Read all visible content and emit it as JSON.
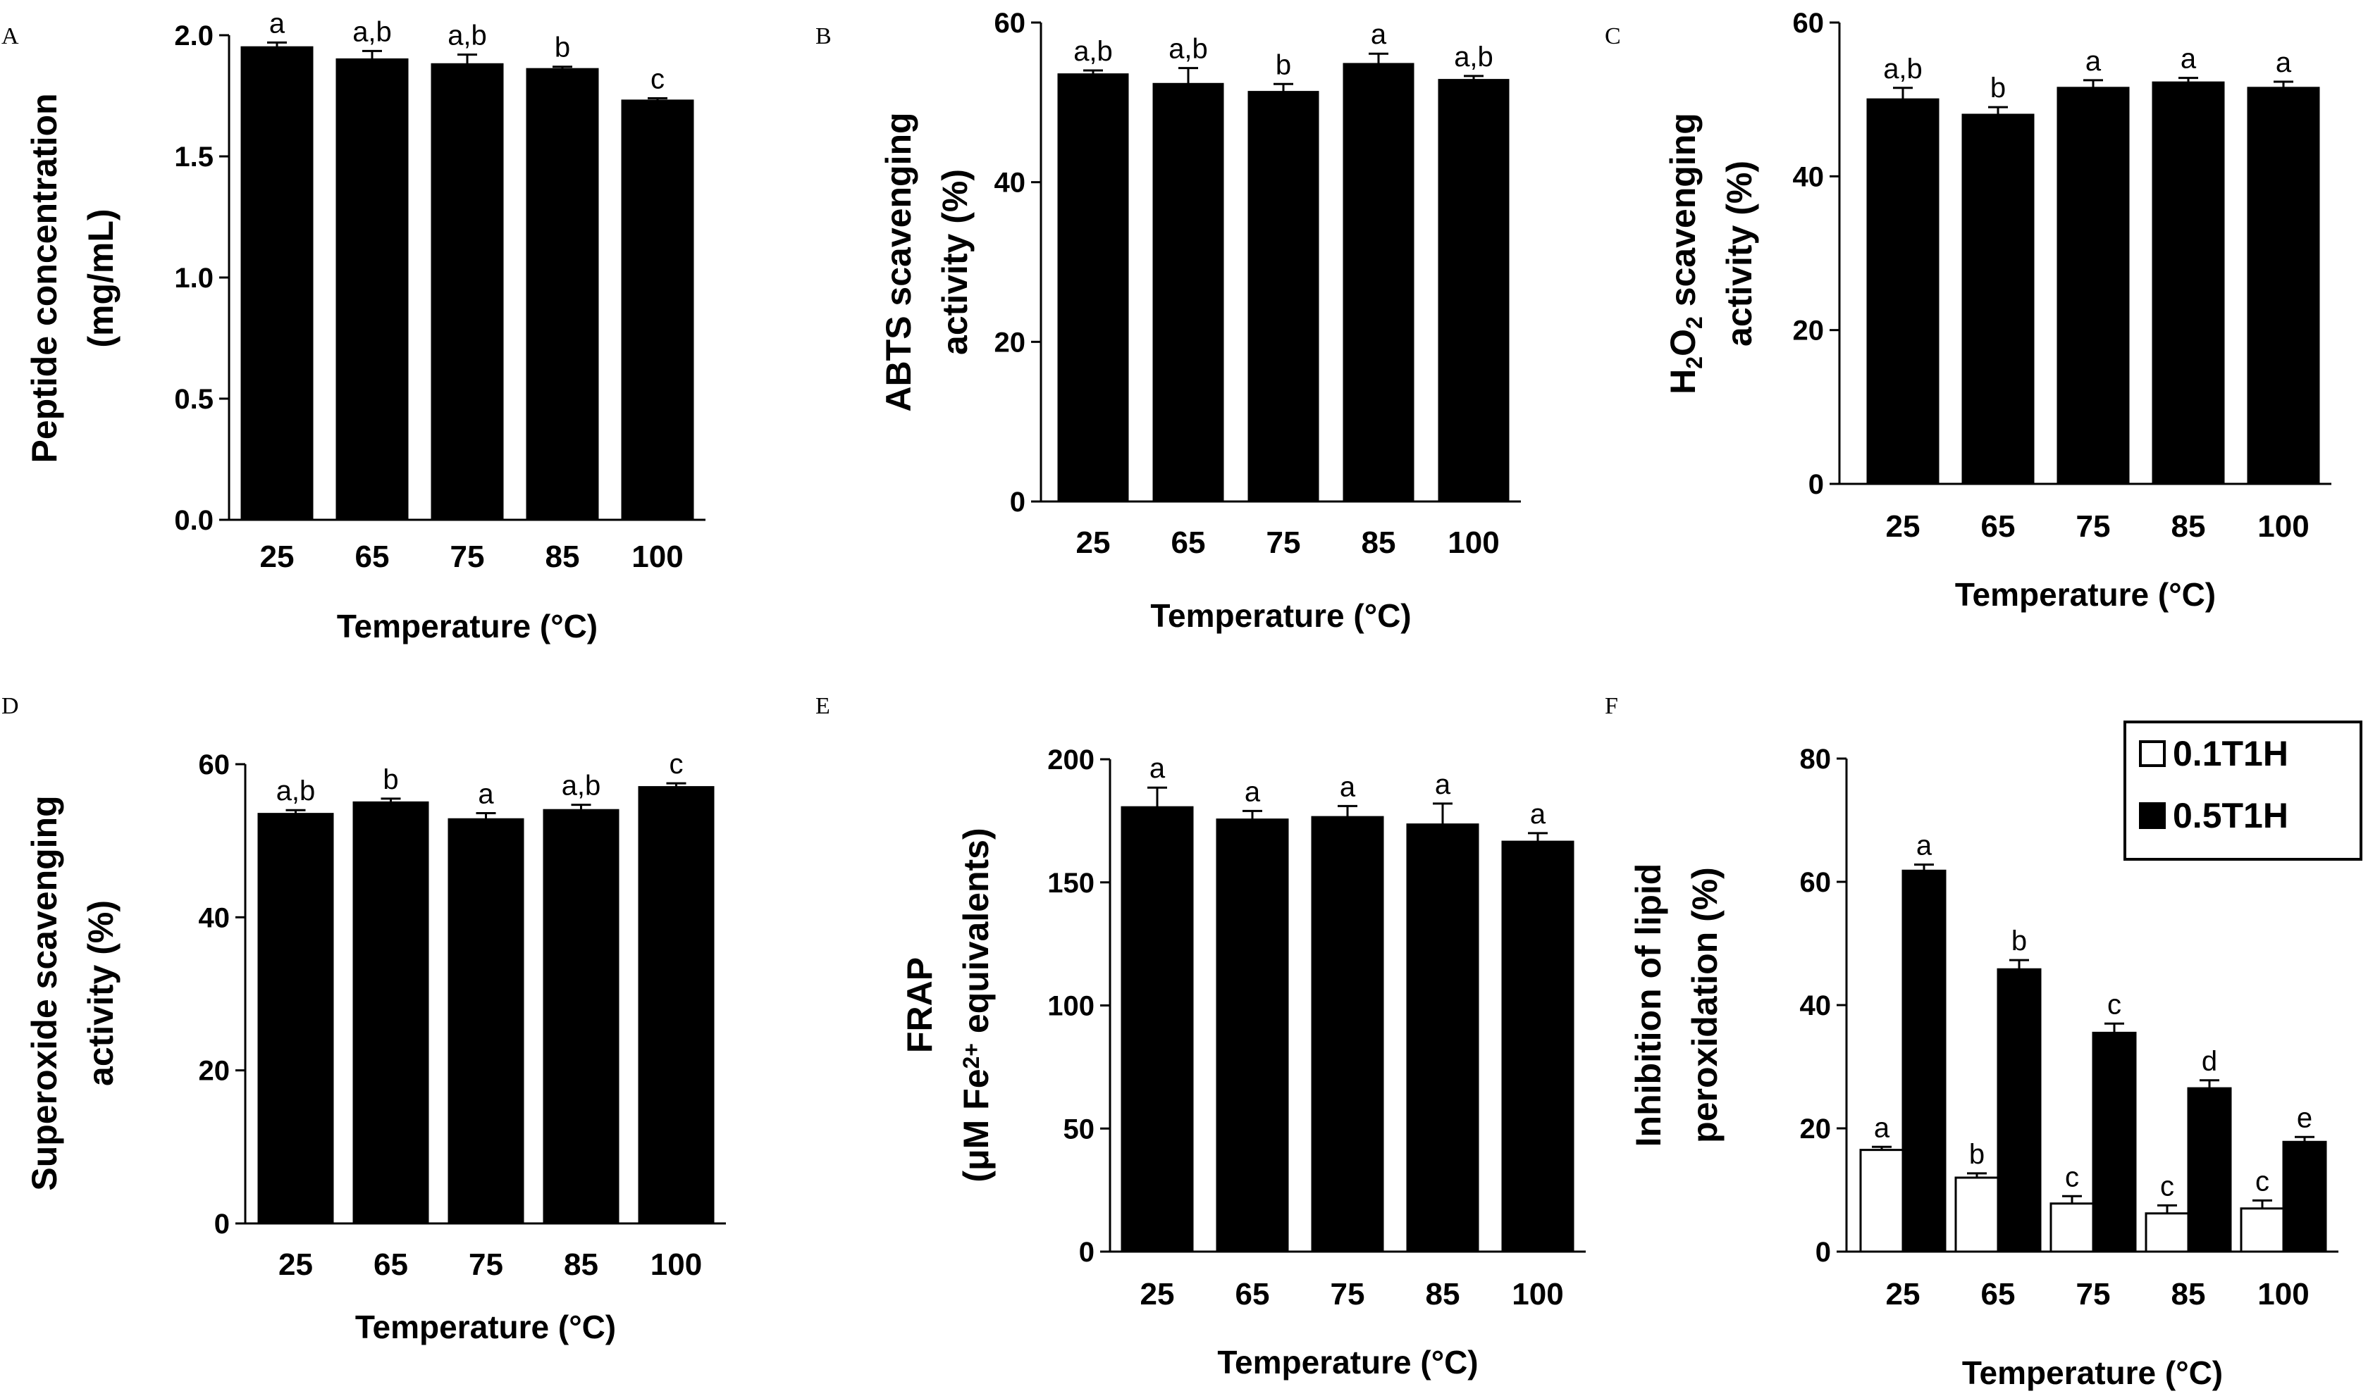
{
  "chart_data": [
    {
      "type": "bar",
      "panel": "A",
      "categories": [
        "25",
        "65",
        "75",
        "85",
        "100"
      ],
      "ylabel_lines": [
        "Peptide concentration",
        "(mg/mL)"
      ],
      "xlabel": "Temperature (°C)",
      "ylim": [
        0,
        2.0
      ],
      "yticks": [
        "0.0",
        "0.5",
        "1.0",
        "1.5",
        "2.0"
      ],
      "series": [
        {
          "fill": "#000000",
          "values": [
            1.95,
            1.9,
            1.88,
            1.86,
            1.73
          ],
          "errors": [
            0.02,
            0.035,
            0.04,
            0.01,
            0.01
          ],
          "labels": [
            "a",
            "a,b",
            "a,b",
            "b",
            "c"
          ]
        }
      ]
    },
    {
      "type": "bar",
      "panel": "B",
      "categories": [
        "25",
        "65",
        "75",
        "85",
        "100"
      ],
      "ylabel_lines": [
        "ABTS scavenging",
        "activity (%)"
      ],
      "xlabel": "Temperature (°C)",
      "ylim": [
        0,
        60
      ],
      "yticks": [
        "0",
        "20",
        "40",
        "60"
      ],
      "series": [
        {
          "fill": "#000000",
          "values": [
            53.5,
            52.3,
            51.3,
            54.8,
            52.8
          ],
          "errors": [
            0.5,
            2.0,
            1.0,
            1.3,
            0.5
          ],
          "labels": [
            "a,b",
            "a,b",
            "b",
            "a",
            "a,b"
          ]
        }
      ]
    },
    {
      "type": "bar",
      "panel": "C",
      "categories": [
        "25",
        "65",
        "75",
        "85",
        "100"
      ],
      "ylabel_lines": [
        "H2O2 scavenging",
        "activity (%)"
      ],
      "xlabel": "Temperature (°C)",
      "ylim": [
        0,
        60
      ],
      "yticks": [
        "0",
        "20",
        "40",
        "60"
      ],
      "series": [
        {
          "fill": "#000000",
          "values": [
            50.0,
            48.0,
            51.5,
            52.2,
            51.5
          ],
          "errors": [
            1.5,
            1.0,
            1.0,
            0.6,
            0.8
          ],
          "labels": [
            "a,b",
            "b",
            "a",
            "a",
            "a"
          ]
        }
      ]
    },
    {
      "type": "bar",
      "panel": "D",
      "categories": [
        "25",
        "65",
        "75",
        "85",
        "100"
      ],
      "ylabel_lines": [
        "Superoxide scavenging",
        "activity (%)"
      ],
      "xlabel": "Temperature (°C)",
      "ylim": [
        0,
        60
      ],
      "yticks": [
        "0",
        "20",
        "40",
        "60"
      ],
      "series": [
        {
          "fill": "#000000",
          "values": [
            53.5,
            55.0,
            52.8,
            54.0,
            57.0
          ],
          "errors": [
            0.5,
            0.5,
            0.8,
            0.7,
            0.5
          ],
          "labels": [
            "a,b",
            "b",
            "a",
            "a,b",
            "c"
          ]
        }
      ]
    },
    {
      "type": "bar",
      "panel": "E",
      "categories": [
        "25",
        "65",
        "75",
        "85",
        "100"
      ],
      "ylabel_lines": [
        "FRAP",
        "(μM Fe2+ equivalents)"
      ],
      "xlabel": "Temperature (°C)",
      "ylim": [
        0,
        200
      ],
      "yticks": [
        "0",
        "50",
        "100",
        "150",
        "200"
      ],
      "series": [
        {
          "fill": "#000000",
          "values": [
            180.5,
            175.5,
            176.5,
            173.5,
            166.5
          ],
          "errors": [
            8,
            3.5,
            4.5,
            8.5,
            3.5
          ],
          "labels": [
            "a",
            "a",
            "a",
            "a",
            "a"
          ]
        }
      ]
    },
    {
      "type": "bar",
      "panel": "F",
      "categories": [
        "25",
        "65",
        "75",
        "85",
        "100"
      ],
      "ylabel_lines": [
        "Inhibition of lipid",
        "peroxidation (%)"
      ],
      "xlabel": "Temperature (°C)",
      "ylim": [
        0,
        80
      ],
      "yticks": [
        "0",
        "20",
        "40",
        "60",
        "80"
      ],
      "legend_position": "top-right",
      "series": [
        {
          "name": "0.1T1H",
          "fill": "#ffffff",
          "values": [
            16.5,
            12.0,
            7.8,
            6.2,
            7.0
          ],
          "errors": [
            0.5,
            0.7,
            1.2,
            1.3,
            1.3
          ],
          "labels": [
            "a",
            "b",
            "c",
            "c",
            "c"
          ]
        },
        {
          "name": "0.5T1H",
          "fill": "#000000",
          "values": [
            61.8,
            45.8,
            35.5,
            26.5,
            17.8
          ],
          "errors": [
            1.0,
            1.5,
            1.5,
            1.3,
            0.8
          ],
          "labels": [
            "a",
            "b",
            "c",
            "d",
            "e"
          ]
        }
      ]
    }
  ]
}
